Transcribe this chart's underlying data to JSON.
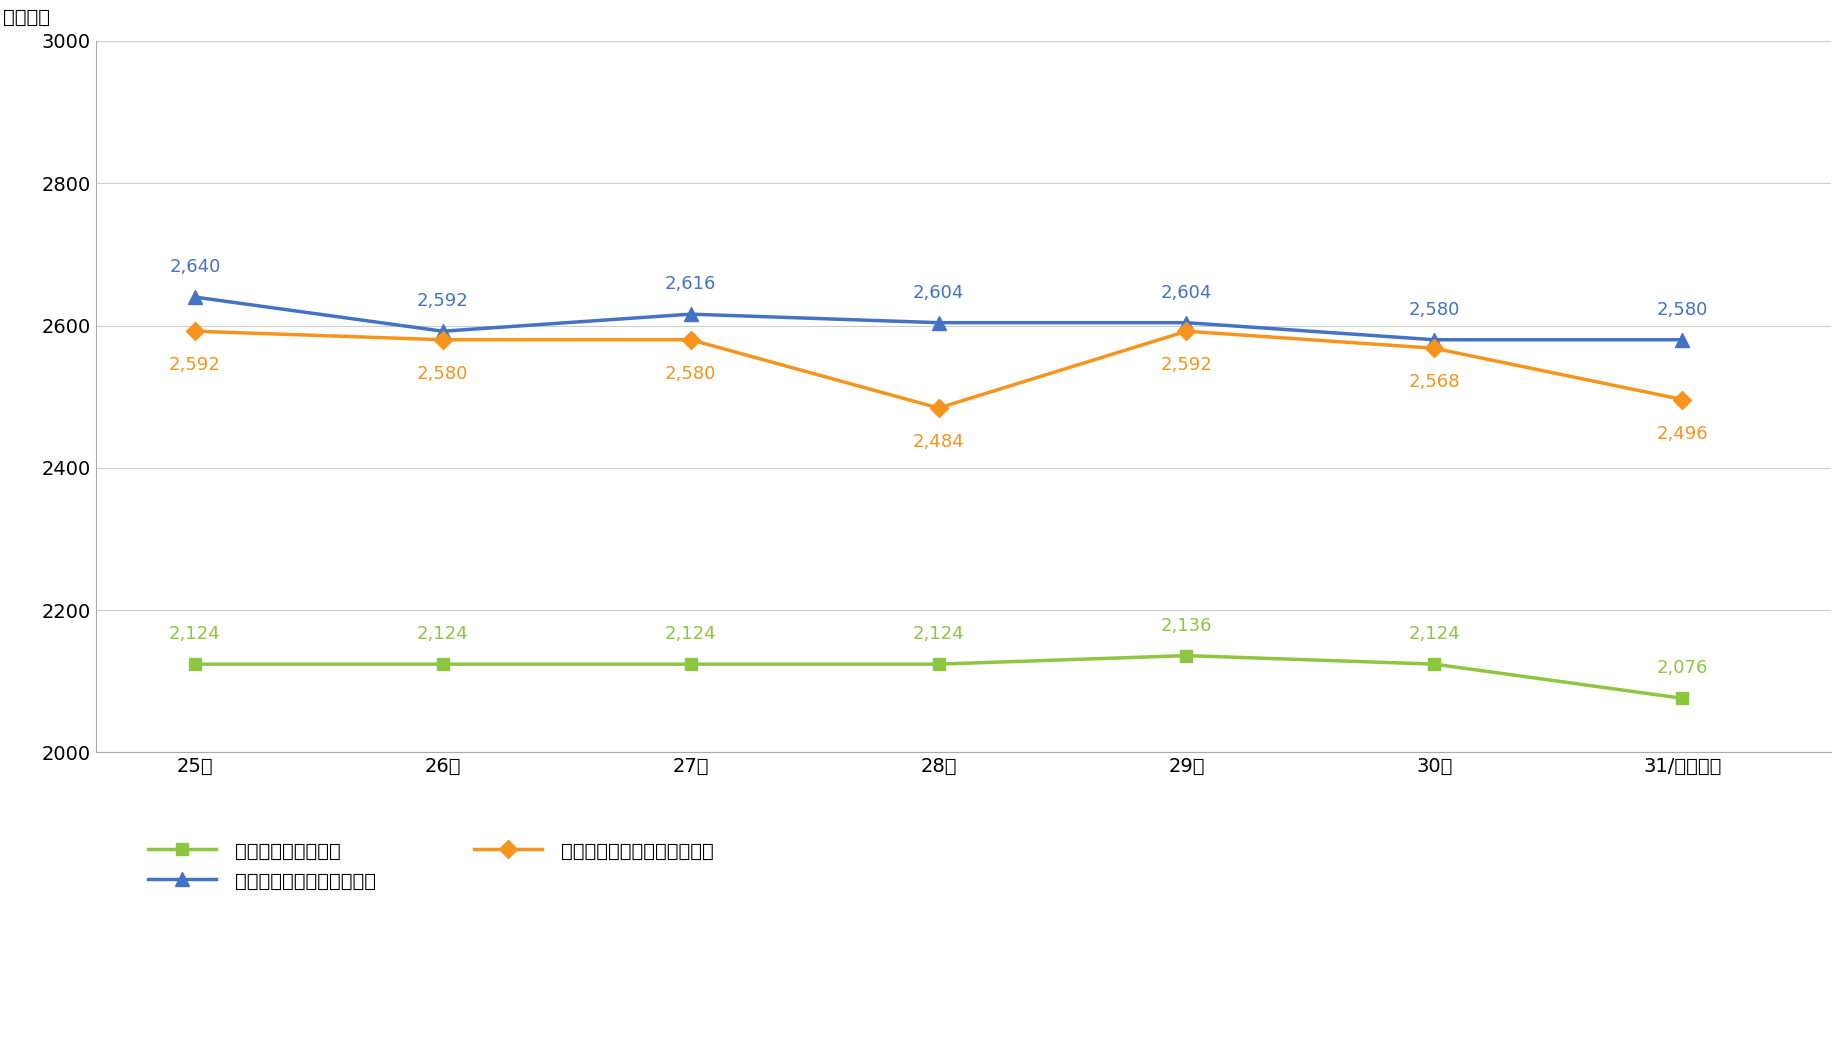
{
  "x_labels": [
    "25年",
    "26年",
    "27年",
    "28年",
    "29年",
    "30年",
    "31/令和元年"
  ],
  "x_positions": [
    0,
    1,
    2,
    3,
    4,
    5,
    6
  ],
  "series": [
    {
      "label": "労働時間（全産業）",
      "values": [
        2124,
        2124,
        2124,
        2124,
        2136,
        2124,
        2076
      ],
      "color": "#8dc63f",
      "marker": "s",
      "linewidth": 2.5,
      "markersize": 9,
      "zorder": 3
    },
    {
      "label": "労働時間（大型トラック）",
      "values": [
        2640,
        2592,
        2616,
        2604,
        2604,
        2580,
        2580
      ],
      "color": "#4472c4",
      "marker": "^",
      "linewidth": 2.5,
      "markersize": 10,
      "zorder": 4
    },
    {
      "label": "労働時間（中小型トラック）",
      "values": [
        2592,
        2580,
        2580,
        2484,
        2592,
        2568,
        2496
      ],
      "color": "#f7941d",
      "marker": "D",
      "linewidth": 2.5,
      "markersize": 9,
      "zorder": 5
    }
  ],
  "ylabel": "（時間）",
  "ylim": [
    2000,
    3000
  ],
  "yticks": [
    2000,
    2200,
    2400,
    2600,
    2800,
    3000
  ],
  "background_color": "#ffffff",
  "plot_bg_color": "#ffffff",
  "grid_color": "#cccccc",
  "label_fontsize": 14,
  "tick_fontsize": 14,
  "annotation_fontsize": 13,
  "legend_fontsize": 14,
  "annot_offsets": {
    "労働時間（全産業）": [
      15,
      15,
      15,
      15,
      15,
      15,
      15
    ],
    "労働時間（大型トラック）": [
      15,
      15,
      15,
      15,
      15,
      15,
      15
    ],
    "労働時間（中小型トラック）": [
      -18,
      -18,
      -18,
      -18,
      -18,
      -18,
      -18
    ]
  }
}
